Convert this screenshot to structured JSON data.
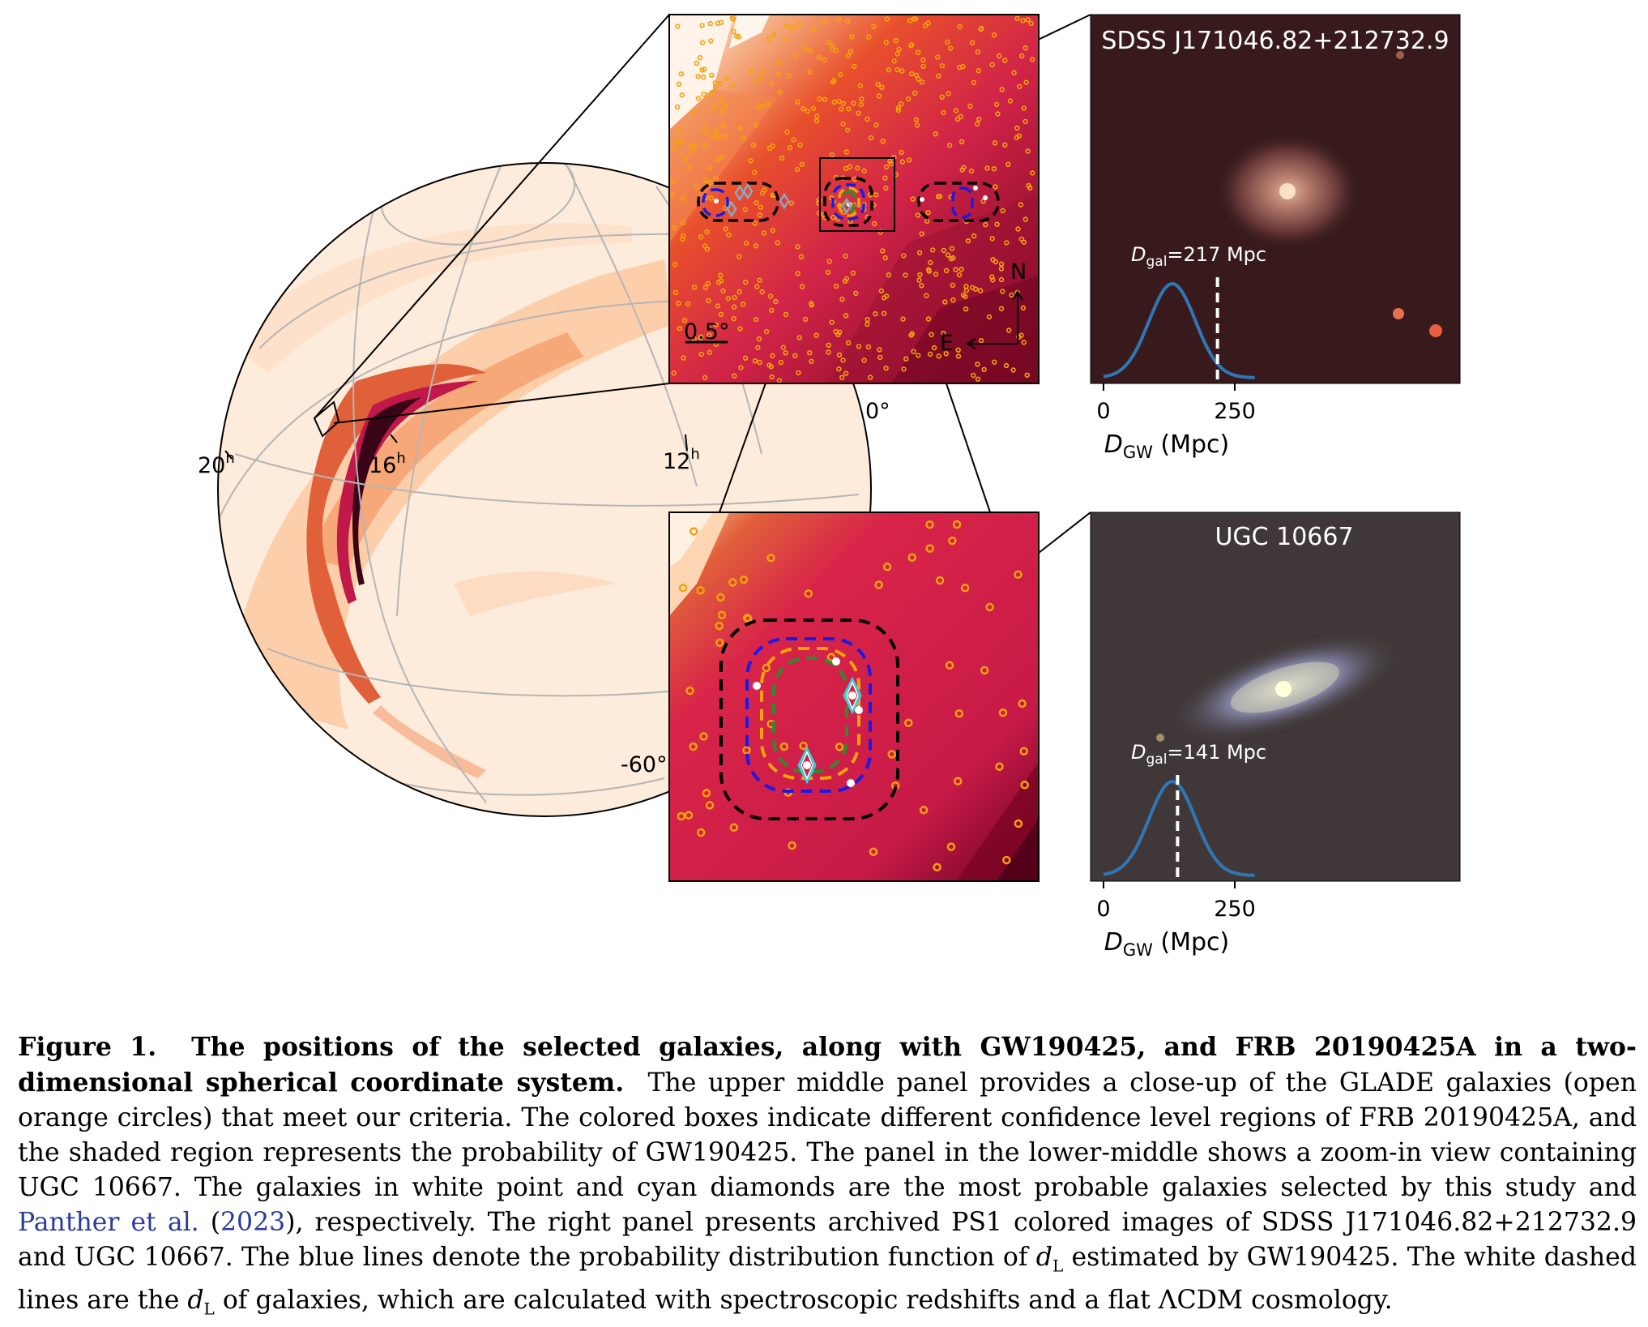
{
  "figure": {
    "sky_labels": {
      "ra_20h": "20",
      "ra_16h": "16",
      "ra_12h": "12",
      "ra_unit": "h",
      "dec_0": "0°",
      "dec_m60": "-60°"
    },
    "zoom_panel": {
      "scale_label": "0.5°",
      "north": "N",
      "east": "E"
    },
    "galaxy_panels": [
      {
        "title": "SDSS J171046.82+212732.9",
        "distance_label": "=217 Mpc",
        "distance_symbol": "D",
        "distance_sub": "gal",
        "tick_0": "0",
        "tick_250": "250",
        "axis_symbol": "D",
        "axis_sub": "GW",
        "axis_unit": " (Mpc)"
      },
      {
        "title": "UGC 10667",
        "distance_label": "=141 Mpc",
        "distance_symbol": "D",
        "distance_sub": "gal",
        "tick_0": "0",
        "tick_250": "250",
        "axis_symbol": "D",
        "axis_sub": "GW",
        "axis_unit": " (Mpc)"
      }
    ],
    "colors": {
      "gw_pdf_line": "#2f78b8",
      "orange_circles": "#f5a20a",
      "frb_box_black": "#000000",
      "frb_box_blue": "#1a1ae6",
      "frb_box_orange": "#f5a20a",
      "frb_box_green": "#2e8b2e",
      "diamond": "#36d1d6"
    }
  },
  "caption": {
    "label": "Figure 1.",
    "bold_title": "The positions of the selected galaxies, along with GW190425, and FRB 20190425A in a two-dimensional spherical coordinate system.",
    "text_1": "The upper middle panel provides a close-up of the GLADE galaxies (open orange circles) that meet our criteria. The colored boxes indicate different confidence level regions of FRB 20190425A, and the shaded region represents the probability of GW190425. The panel in the lower-middle shows a zoom-in view containing UGC 10667. The galaxies in white point and cyan diamonds are the most probable galaxies selected by this study and ",
    "cite_1": "Panther et al.",
    "cite_paren_open": " (",
    "cite_year": "2023",
    "text_2": "), respectively. The right panel presents archived PS1 colored images of SDSS J171046.82+212732.9 and UGC 10667. The blue lines denote the probability distribution function of ",
    "dl_symbol_1": "d",
    "dl_sub_1": "L",
    "text_3": " estimated by GW190425. The white dashed lines are the ",
    "dl_symbol_2": "d",
    "dl_sub_2": "L",
    "text_4": " of galaxies, which are calculated with spectroscopic redshifts and a flat ΛCDM cosmology."
  }
}
